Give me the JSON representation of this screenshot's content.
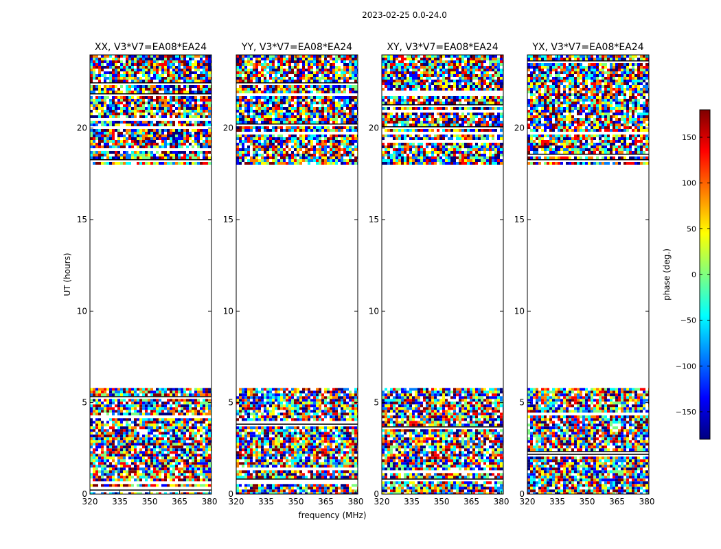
{
  "chart_data": {
    "type": "heatmap",
    "suptitle": "2023-02-25 0.0-24.0",
    "ylabel": "UT (hours)",
    "xlabel": "frequency (MHz)",
    "xlim": [
      320,
      381
    ],
    "ylim": [
      0,
      24
    ],
    "xticks": [
      "320",
      "335",
      "350",
      "365",
      "380"
    ],
    "yticks": [
      "0",
      "5",
      "10",
      "15",
      "20"
    ],
    "panels": [
      {
        "title": "XX, V3*V7=EA08*EA24",
        "polarization": "XX",
        "coverage_hours": [
          [
            0,
            5.8
          ],
          [
            18.1,
            24
          ]
        ]
      },
      {
        "title": "YY, V3*V7=EA08*EA24",
        "polarization": "YY",
        "coverage_hours": [
          [
            0,
            5.8
          ],
          [
            18.1,
            24
          ]
        ]
      },
      {
        "title": "XY, V3*V7=EA08*EA24",
        "polarization": "XY",
        "coverage_hours": [
          [
            0,
            5.8
          ],
          [
            18.1,
            24
          ]
        ]
      },
      {
        "title": "YX, V3*V7=EA08*EA24",
        "polarization": "YX",
        "coverage_hours": [
          [
            0,
            5.8
          ],
          [
            18.1,
            24
          ]
        ]
      }
    ],
    "colorbar": {
      "label": "phase (deg.)",
      "range": [
        -180,
        180
      ],
      "ticks": [
        "150",
        "100",
        "50",
        "0",
        "−50",
        "−100",
        "−150"
      ],
      "tick_values": [
        150,
        100,
        50,
        0,
        -50,
        -100,
        -150
      ],
      "colormap": "jet",
      "colors": [
        "#00007f",
        "#0000ff",
        "#007fff",
        "#00ffff",
        "#7fff7f",
        "#ffff00",
        "#ff7f00",
        "#ff0000",
        "#7f0000"
      ]
    }
  }
}
